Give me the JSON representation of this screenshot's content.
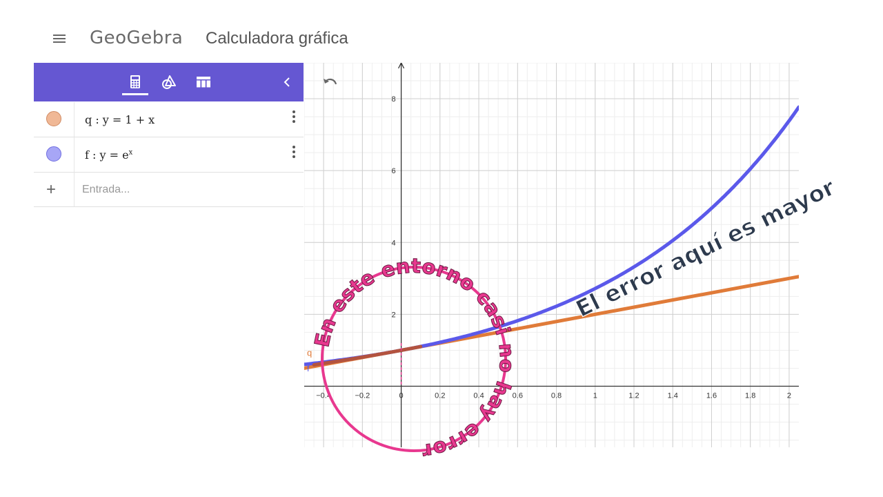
{
  "header": {
    "menu_icon": "hamburger-menu-icon",
    "logo_text": "GeoGebra",
    "app_title": "Calculadora gráfica"
  },
  "panel": {
    "tabs": [
      {
        "name": "algebra",
        "icon": "calculator-icon",
        "active": true
      },
      {
        "name": "tools",
        "icon": "geometry-tools-icon",
        "active": false
      },
      {
        "name": "table",
        "icon": "table-icon",
        "active": false
      }
    ],
    "collapse_icon": "chevron-left-icon",
    "expressions": [
      {
        "label": "q",
        "formula_plain": "q : y = 1 + x",
        "color": "#f0b896"
      },
      {
        "label": "f",
        "formula_plain": "f : y = e",
        "formula_sup": "x",
        "color": "#a7a6f6"
      }
    ],
    "input_placeholder": "Entrada..."
  },
  "graph": {
    "undo_icon": "undo-icon",
    "x_range": [
      -0.5,
      2.05
    ],
    "y_range": [
      -1.7,
      9.0
    ],
    "x_ticks": [
      "−0.4",
      "−0.2",
      "0",
      "0.2",
      "0.4",
      "0.6",
      "0.8",
      "1",
      "1.2",
      "1.4",
      "1.6",
      "1.8",
      "2"
    ],
    "y_ticks": [
      "2",
      "4",
      "6",
      "8"
    ],
    "line_label": "q",
    "curve_label": "f",
    "colors": {
      "curve": "#5b59ea",
      "line": "#e07b39",
      "overlap": "#b3533f",
      "circle": "#e8388f",
      "annotation_fill": "#2d3a4d"
    }
  },
  "annotations": {
    "circle_text": "En este entorno casi no hay error",
    "diagonal_text": "El error aquí es mayor"
  }
}
